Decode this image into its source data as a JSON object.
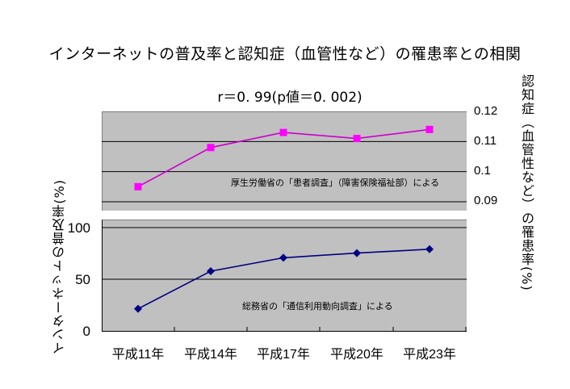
{
  "chart_data": [
    {
      "type": "line",
      "title": "インターネットの普及率と認知症（血管性など）の罹患率との相関",
      "subtitle": "r＝0. 99(p値＝0. 002)",
      "categories": [
        "平成11年",
        "平成14年",
        "平成17年",
        "平成20年",
        "平成23年"
      ],
      "series": [
        {
          "name": "認知症（血管性など）の罹患率(%)",
          "values": [
            0.095,
            0.108,
            0.113,
            0.111,
            0.114
          ],
          "color": "#ff00ff",
          "marker": "square"
        }
      ],
      "ylabel": "認知症（血管性など）の罹患率(%)",
      "ylabel_position": "right",
      "ylim": [
        0.087,
        0.12
      ],
      "yticks": [
        "0.12",
        "0.11",
        "0.1",
        "0.09"
      ],
      "annotation": "厚生労働省の「患者調査」（障害保険福祉部）による",
      "grid": true,
      "background": "#c0c0c0"
    },
    {
      "type": "line",
      "categories": [
        "平成11年",
        "平成14年",
        "平成17年",
        "平成20年",
        "平成23年"
      ],
      "series": [
        {
          "name": "インターネットの普及率(%)",
          "values": [
            21.4,
            57.8,
            70.8,
            75.3,
            79.1
          ],
          "color": "#000080",
          "marker": "diamond"
        }
      ],
      "ylabel": "インターネットの普及率(%)",
      "ylabel_position": "left",
      "ylim": [
        0,
        108
      ],
      "yticks": [
        "100",
        "50",
        "0"
      ],
      "xlabel": "",
      "annotation": "総務省の「通信利用動向調査」による",
      "grid": true,
      "background": "#c0c0c0"
    }
  ],
  "labels": {
    "title": "インターネットの普及率と認知症（血管性など）の罹患率との相関",
    "subtitle": "r＝0. 99(p値＝0. 002)",
    "ylabel_left": "インターネットの普及率(%)",
    "ylabel_right": "認知症（血管性など）の罹患率(%)",
    "upper_yticks": [
      "0.12",
      "0.11",
      "0.1",
      "0.09"
    ],
    "lower_yticks": [
      "100",
      "50",
      "0"
    ],
    "xticks": [
      "平成11年",
      "平成14年",
      "平成17年",
      "平成20年",
      "平成23年"
    ],
    "upper_note": "厚生労働省の「患者調査」（障害保険福祉部）による",
    "lower_note": "総務省の「通信利用動向調査」による"
  }
}
